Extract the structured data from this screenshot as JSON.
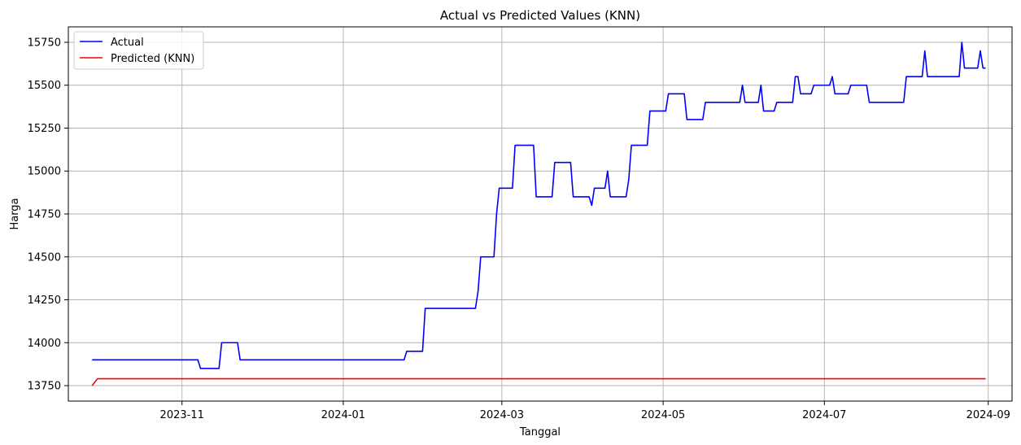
{
  "chart_data": {
    "type": "line",
    "title": "Actual vs Predicted Values (KNN)",
    "xlabel": "Tanggal",
    "ylabel": "Harga",
    "x_type": "date",
    "xlim": [
      "2023-09-19",
      "2024-09-10"
    ],
    "ylim": [
      13660,
      15840
    ],
    "x_ticks": [
      "2023-11-01",
      "2024-01-01",
      "2024-03-01",
      "2024-05-01",
      "2024-07-01",
      "2024-09-01"
    ],
    "x_tick_labels": [
      "2023-11",
      "2024-01",
      "2024-03",
      "2024-05",
      "2024-07",
      "2024-09"
    ],
    "y_ticks": [
      13750,
      14000,
      14250,
      14500,
      14750,
      15000,
      15250,
      15500,
      15750
    ],
    "y_tick_labels": [
      "13750",
      "14000",
      "14250",
      "14500",
      "14750",
      "15000",
      "15250",
      "15500",
      "15750"
    ],
    "grid": true,
    "legend_position": "top-left",
    "series": [
      {
        "name": "Actual",
        "color": "#0000ff",
        "points": [
          [
            "2023-09-28",
            13900
          ],
          [
            "2023-11-07",
            13900
          ],
          [
            "2023-11-08",
            13850
          ],
          [
            "2023-11-15",
            13850
          ],
          [
            "2023-11-16",
            14000
          ],
          [
            "2023-11-22",
            14000
          ],
          [
            "2023-11-23",
            13900
          ],
          [
            "2024-01-24",
            13900
          ],
          [
            "2024-01-25",
            13950
          ],
          [
            "2024-01-31",
            13950
          ],
          [
            "2024-02-01",
            14200
          ],
          [
            "2024-02-20",
            14200
          ],
          [
            "2024-02-21",
            14300
          ],
          [
            "2024-02-22",
            14500
          ],
          [
            "2024-02-27",
            14500
          ],
          [
            "2024-02-28",
            14750
          ],
          [
            "2024-02-29",
            14900
          ],
          [
            "2024-03-05",
            14900
          ],
          [
            "2024-03-06",
            15150
          ],
          [
            "2024-03-13",
            15150
          ],
          [
            "2024-03-14",
            14850
          ],
          [
            "2024-03-20",
            14850
          ],
          [
            "2024-03-21",
            15050
          ],
          [
            "2024-03-27",
            15050
          ],
          [
            "2024-03-28",
            14850
          ],
          [
            "2024-04-03",
            14850
          ],
          [
            "2024-04-04",
            14800
          ],
          [
            "2024-04-05",
            14900
          ],
          [
            "2024-04-09",
            14900
          ],
          [
            "2024-04-10",
            15000
          ],
          [
            "2024-04-11",
            14850
          ],
          [
            "2024-04-17",
            14850
          ],
          [
            "2024-04-18",
            14950
          ],
          [
            "2024-04-19",
            15150
          ],
          [
            "2024-04-25",
            15150
          ],
          [
            "2024-04-26",
            15350
          ],
          [
            "2024-05-02",
            15350
          ],
          [
            "2024-05-03",
            15450
          ],
          [
            "2024-05-09",
            15450
          ],
          [
            "2024-05-10",
            15300
          ],
          [
            "2024-05-16",
            15300
          ],
          [
            "2024-05-17",
            15400
          ],
          [
            "2024-05-30",
            15400
          ],
          [
            "2024-05-31",
            15500
          ],
          [
            "2024-06-01",
            15400
          ],
          [
            "2024-06-06",
            15400
          ],
          [
            "2024-06-07",
            15500
          ],
          [
            "2024-06-08",
            15350
          ],
          [
            "2024-06-12",
            15350
          ],
          [
            "2024-06-13",
            15400
          ],
          [
            "2024-06-19",
            15400
          ],
          [
            "2024-06-20",
            15550
          ],
          [
            "2024-06-21",
            15550
          ],
          [
            "2024-06-22",
            15450
          ],
          [
            "2024-06-26",
            15450
          ],
          [
            "2024-06-27",
            15500
          ],
          [
            "2024-07-03",
            15500
          ],
          [
            "2024-07-04",
            15550
          ],
          [
            "2024-07-05",
            15450
          ],
          [
            "2024-07-10",
            15450
          ],
          [
            "2024-07-11",
            15500
          ],
          [
            "2024-07-17",
            15500
          ],
          [
            "2024-07-18",
            15400
          ],
          [
            "2024-07-31",
            15400
          ],
          [
            "2024-08-01",
            15550
          ],
          [
            "2024-08-07",
            15550
          ],
          [
            "2024-08-08",
            15700
          ],
          [
            "2024-08-09",
            15550
          ],
          [
            "2024-08-21",
            15550
          ],
          [
            "2024-08-22",
            15750
          ],
          [
            "2024-08-23",
            15600
          ],
          [
            "2024-08-28",
            15600
          ],
          [
            "2024-08-29",
            15700
          ],
          [
            "2024-08-30",
            15600
          ],
          [
            "2024-08-31",
            15600
          ]
        ]
      },
      {
        "name": "Predicted (KNN)",
        "color": "#ff0000",
        "points": [
          [
            "2023-09-28",
            13750
          ],
          [
            "2023-09-30",
            13790
          ],
          [
            "2024-08-31",
            13790
          ]
        ]
      }
    ]
  }
}
